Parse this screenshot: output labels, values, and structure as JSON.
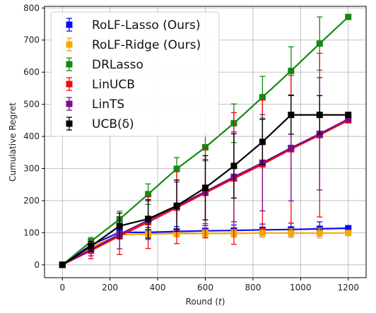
{
  "chart_data": {
    "type": "line",
    "title": "",
    "xlabel": "Round (t)",
    "ylabel": "Cumulative Regret",
    "xlim": [
      -75,
      1275
    ],
    "ylim": [
      -40,
      805
    ],
    "xticks": [
      0,
      200,
      400,
      600,
      800,
      1000,
      1200
    ],
    "yticks": [
      0,
      100,
      200,
      300,
      400,
      500,
      600,
      700,
      800
    ],
    "grid": true,
    "legend_position": "top-left",
    "series": [
      {
        "name": "RoLF-Lasso (Ours)",
        "color": "#0a0af5",
        "x": [
          0,
          120,
          240,
          360,
          480,
          600,
          720,
          840,
          960,
          1080,
          1200
        ],
        "y": [
          0,
          62,
          101,
          101,
          104,
          106,
          107,
          109,
          110,
          112,
          114
        ],
        "err": [
          0,
          10,
          14,
          15,
          15,
          16,
          17,
          18,
          20,
          22,
          0
        ]
      },
      {
        "name": "RoLF-Ridge (Ours)",
        "color": "#f5a800",
        "x": [
          0,
          120,
          240,
          360,
          480,
          600,
          720,
          840,
          960,
          1080,
          1200
        ],
        "y": [
          0,
          55,
          94,
          96,
          97,
          98,
          98,
          99,
          99,
          99,
          99
        ],
        "err": [
          0,
          8,
          10,
          10,
          10,
          12,
          12,
          13,
          14,
          15,
          0
        ]
      },
      {
        "name": "DRLasso",
        "color": "#138a13",
        "x": [
          0,
          120,
          240,
          360,
          480,
          600,
          720,
          840,
          960,
          1080,
          1200
        ],
        "y": [
          0,
          73,
          142,
          220,
          299,
          366,
          441,
          522,
          604,
          689,
          772
        ],
        "err": [
          0,
          12,
          25,
          32,
          35,
          42,
          60,
          65,
          75,
          83,
          0
        ]
      },
      {
        "name": "LinUCB",
        "color": "#f50a0a",
        "x": [
          0,
          120,
          240,
          360,
          480,
          600,
          720,
          840,
          960,
          1080,
          1200
        ],
        "y": [
          0,
          44,
          90,
          133,
          178,
          224,
          269,
          313,
          360,
          404,
          450
        ],
        "err": [
          0,
          25,
          58,
          82,
          112,
          140,
          205,
          200,
          230,
          255,
          0
        ]
      },
      {
        "name": "LinTS",
        "color": "#7a0f8a",
        "x": [
          0,
          120,
          240,
          360,
          480,
          600,
          720,
          840,
          960,
          1080,
          1200
        ],
        "y": [
          0,
          48,
          95,
          139,
          183,
          228,
          274,
          318,
          364,
          408,
          454
        ],
        "err": [
          0,
          20,
          45,
          60,
          75,
          100,
          140,
          150,
          165,
          175,
          0
        ]
      },
      {
        "name": "UCB(δ)",
        "color": "#000000",
        "x": [
          0,
          120,
          240,
          360,
          480,
          600,
          720,
          840,
          960,
          1080,
          1200
        ],
        "y": [
          0,
          58,
          121,
          143,
          184,
          240,
          308,
          383,
          467,
          467,
          467
        ],
        "err": [
          0,
          15,
          40,
          60,
          80,
          100,
          100,
          70,
          60,
          60,
          0
        ]
      }
    ]
  }
}
